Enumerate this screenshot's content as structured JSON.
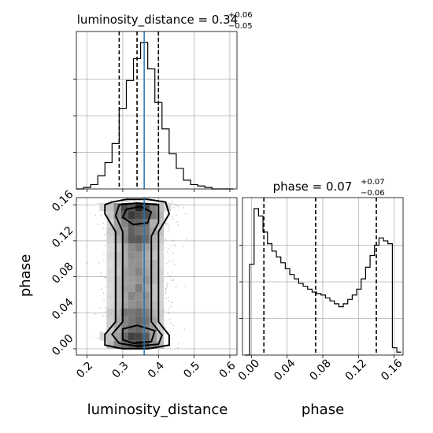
{
  "chart_data": [
    {
      "panel": "luminosity_distance-marginal",
      "type": "histogram",
      "title": {
        "main": "luminosity_distance = 0.34",
        "sup": "+0.06",
        "sub": "−0.05"
      },
      "x_range": [
        0.17,
        0.62
      ],
      "bin_edges": [
        0.17,
        0.19,
        0.21,
        0.23,
        0.25,
        0.27,
        0.29,
        0.31,
        0.33,
        0.35,
        0.37,
        0.39,
        0.41,
        0.43,
        0.45,
        0.47,
        0.49,
        0.51,
        0.53,
        0.55,
        0.57,
        0.59,
        0.61
      ],
      "counts": [
        0,
        0.01,
        0.03,
        0.09,
        0.18,
        0.31,
        0.55,
        0.74,
        0.89,
        1.0,
        0.82,
        0.59,
        0.41,
        0.24,
        0.14,
        0.06,
        0.03,
        0.02,
        0.01,
        0,
        0,
        0
      ],
      "quantiles": [
        0.29,
        0.34,
        0.4
      ],
      "truth": 0.36,
      "grid": true
    },
    {
      "panel": "phase-marginal",
      "type": "histogram",
      "title": {
        "main": "phase = 0.07",
        "sup": "+0.07",
        "sub": "−0.06"
      },
      "xlabel": "phase",
      "x_range": [
        -0.01,
        0.17
      ],
      "x_ticks": [
        "0.00",
        "0.04",
        "0.08",
        "0.12",
        "0.16"
      ],
      "bin_edges": [
        -0.007,
        -0.002,
        0.003,
        0.008,
        0.013,
        0.018,
        0.023,
        0.028,
        0.033,
        0.038,
        0.043,
        0.048,
        0.053,
        0.058,
        0.063,
        0.068,
        0.073,
        0.078,
        0.083,
        0.088,
        0.093,
        0.098,
        0.103,
        0.108,
        0.113,
        0.118,
        0.123,
        0.128,
        0.133,
        0.138,
        0.143,
        0.148,
        0.153,
        0.158,
        0.163,
        0.168
      ],
      "counts": [
        0.0,
        0.62,
        1.0,
        0.95,
        0.84,
        0.76,
        0.71,
        0.67,
        0.63,
        0.59,
        0.55,
        0.52,
        0.49,
        0.47,
        0.45,
        0.43,
        0.42,
        0.41,
        0.39,
        0.37,
        0.35,
        0.33,
        0.35,
        0.38,
        0.41,
        0.45,
        0.52,
        0.6,
        0.68,
        0.75,
        0.8,
        0.78,
        0.76,
        0.05,
        0.02
      ],
      "quantiles": [
        0.014,
        0.072,
        0.14
      ],
      "grid": true
    },
    {
      "panel": "2d-density",
      "type": "heatmap",
      "xlabel": "luminosity_distance",
      "ylabel": "phase",
      "x_range": [
        0.17,
        0.62
      ],
      "y_range": [
        -0.007,
        0.168
      ],
      "x_ticks": [
        "0.2",
        "0.3",
        "0.4",
        "0.5",
        "0.6"
      ],
      "y_ticks": [
        "0.00",
        "0.04",
        "0.08",
        "0.12",
        "0.16"
      ],
      "truth_x": 0.36,
      "contour_levels": [
        "inner",
        "middle",
        "outer"
      ],
      "grid": true
    }
  ]
}
